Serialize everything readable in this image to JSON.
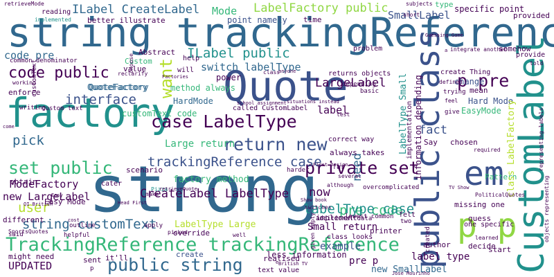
{
  "palette": {
    "deep_purple": "#440154",
    "indigo": "#3b528b",
    "blue": "#31688e",
    "teal": "#21918c",
    "green": "#35b779",
    "lime": "#90d743",
    "yellow_green": "#b5de2b"
  },
  "words": [
    "string trackingReference",
    "strong",
    "Quote",
    "factory",
    "public class",
    "CustomLabel",
    "p p",
    "em",
    "case LabelType",
    "return new",
    "TrackingReference trackingReference",
    "set public",
    "public string",
    "private set",
    "p pre",
    "trackingReference case",
    "string customText",
    "CreateLabel LabelType",
    "ILabel CreateLabel",
    "LabelFactory public",
    "ILabel public",
    "LargeLabel",
    "SmallLabel",
    "code public",
    "interface",
    "need",
    "want",
    "pre code",
    "labelType case",
    "switch labelType",
    "code pre",
    "pick",
    "user",
    "label",
    "fact",
    "now",
    "Mode",
    "UPDATED",
    "new LargeLabel",
    "new SmallLabel",
    "ModeFactory",
    "factory method",
    "Large return",
    "Small return",
    "QuoteFactory",
    "HardMode",
    "EasyMode",
    "Hard Mode",
    "Easy Mode",
    "LabelType Large",
    "label type",
    "change",
    "pre p",
    "example",
    "implement",
    "printer",
    "guess",
    "Pattern",
    "class LabelFactory",
    "specific point",
    "provided",
    "subjects",
    "retrieveMode",
    "reading",
    "type",
    "point namely",
    "implemented",
    "better illustrate",
    "Custom",
    "Abstract",
    "help",
    "method always",
    "power",
    "will",
    "it'll",
    "create",
    "might need",
    "sent",
    "realised",
    "less information",
    "text value",
    "additional data",
    "called CustomLabel",
    "returns objects",
    "depending",
    "basic",
    "class looks",
    "enforce",
    "writing",
    "customText",
    "custom text",
    "customText code",
    "QuoteFactory",
    "Pizza",
    "scenario",
    "obtain",
    "cater",
    "different",
    "outline",
    "helpful",
    "apply",
    "said",
    "SportsQuotes",
    "override",
    "well",
    "felt",
    "two",
    "missing one",
    "one specific",
    "PoliticalQuotes",
    "author",
    "decide",
    "learned",
    "created",
    "start",
    "Say",
    "chosen",
    "required",
    "give",
    "feel",
    "trying",
    "defined",
    "create Thing",
    "mean",
    "somehow",
    "problem",
    "short",
    "integrate another",
    "told",
    "choose",
    "reclarify",
    "working",
    "common denominator",
    "Factories",
    "school assignment",
    "situations instead",
    "anyone",
    "class",
    "lowest common",
    "given empty",
    "correct way",
    "always takes",
    "far",
    "harder",
    "although",
    "several",
    "First Design",
    "TV Show",
    "British TV",
    "Jose Mourinho",
    "Guessing Game",
    "Show book",
    "switches",
    "overcomplicated",
    "information depending",
    "implementation",
    "objects representing",
    "representing labels",
    "LabelType Small",
    "retrieveQuote",
    "Head First",
    "QI British",
    "picked",
    "make",
    "come",
    "test",
    "cost",
    "Easy",
    "p",
    "e",
    "a",
    "time",
    "provide",
    "value"
  ]
}
